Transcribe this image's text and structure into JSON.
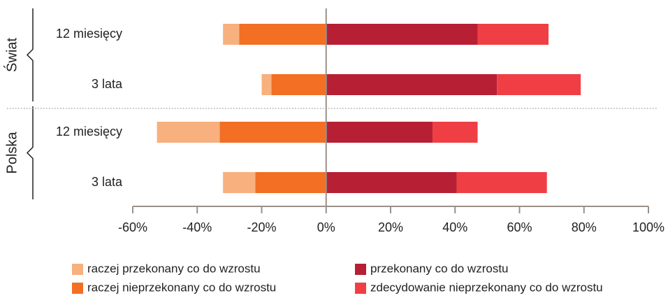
{
  "chart_data": {
    "type": "diverging_stacked_bar",
    "category_groups": [
      {
        "name": "Świat",
        "categories": [
          "12 miesięcy",
          "3 lata"
        ]
      },
      {
        "name": "Polska",
        "categories": [
          "12 miesięcy",
          "3 lata"
        ]
      }
    ],
    "series": [
      {
        "name": "raczej przekonany co do wzrostu",
        "color": "#f7b07e",
        "values": [
          -5,
          -3,
          -19.5,
          -10
        ]
      },
      {
        "name": "raczej nieprzekonany co do wzrostu",
        "color": "#f26f24",
        "values": [
          -27,
          -17,
          -33,
          -22
        ]
      },
      {
        "name": "przekonany co do wzrostu",
        "color": "#b71f35",
        "values": [
          47,
          53,
          33,
          40.5
        ]
      },
      {
        "name": "zdecydowanie nieprzekonany co do wzrostu",
        "color": "#ef3f45",
        "values": [
          22,
          26,
          14,
          28
        ]
      }
    ],
    "xlim": [
      -60,
      100
    ],
    "xticks": [
      {
        "value": -60,
        "label": "-60%"
      },
      {
        "value": -40,
        "label": "-40%"
      },
      {
        "value": -20,
        "label": "-20%"
      },
      {
        "value": 0,
        "label": "0%"
      },
      {
        "value": 20,
        "label": "20%"
      },
      {
        "value": 40,
        "label": "40%"
      },
      {
        "value": 60,
        "label": "60%"
      },
      {
        "value": 80,
        "label": "80%"
      },
      {
        "value": 100,
        "label": "100%"
      }
    ]
  }
}
